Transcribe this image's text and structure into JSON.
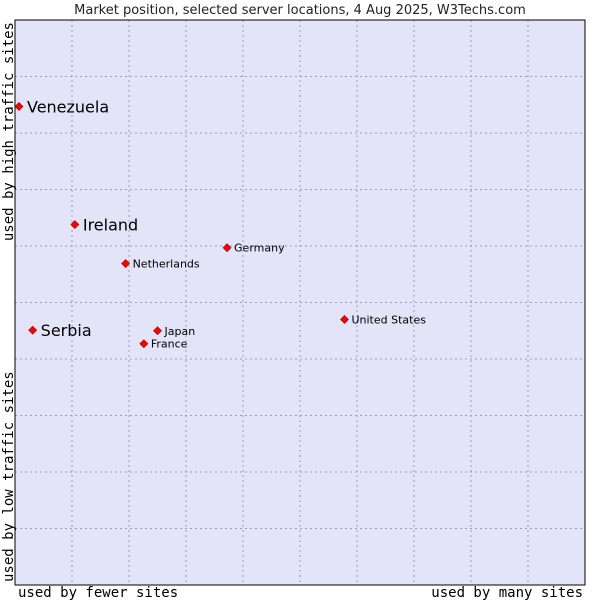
{
  "chart_data": {
    "type": "scatter",
    "title": "Market position, selected server locations, 4 Aug 2025, W3Techs.com",
    "x_axis": {
      "low_label": "used by fewer sites",
      "high_label": "used by many sites",
      "range": [
        0,
        100
      ]
    },
    "y_axis": {
      "low_label": "used by low traffic sites",
      "high_label": "used by high traffic sites",
      "range": [
        0,
        100
      ]
    },
    "grid": true,
    "points": [
      {
        "name": "Venezuela",
        "x": 0.7,
        "y": 84.7,
        "emphasis": true
      },
      {
        "name": "Ireland",
        "x": 10.5,
        "y": 63.8,
        "emphasis": true
      },
      {
        "name": "Serbia",
        "x": 3.1,
        "y": 45.1,
        "emphasis": true
      },
      {
        "name": "Germany",
        "x": 37.2,
        "y": 59.7,
        "emphasis": false
      },
      {
        "name": "Netherlands",
        "x": 19.4,
        "y": 56.9,
        "emphasis": false
      },
      {
        "name": "United States",
        "x": 57.8,
        "y": 47.0,
        "emphasis": false
      },
      {
        "name": "Japan",
        "x": 25.0,
        "y": 45.0,
        "emphasis": false
      },
      {
        "name": "France",
        "x": 22.6,
        "y": 42.7,
        "emphasis": false
      }
    ]
  },
  "colors": {
    "plot_bg": "#e4e4f8",
    "grid": "#9c9cb4",
    "border": "#000000",
    "point_fill": "#ff0000",
    "point_stroke": "#990000"
  }
}
